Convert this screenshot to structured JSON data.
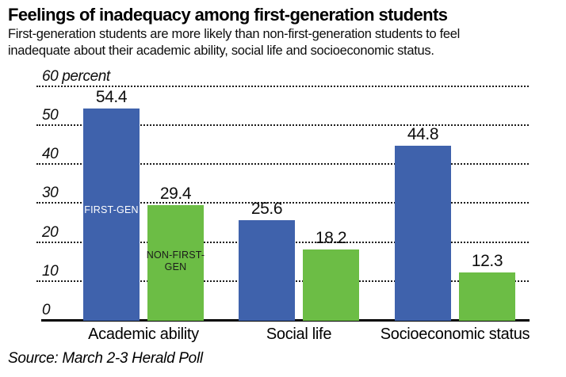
{
  "header": {
    "title": "Feelings of inadequacy among first-generation students",
    "subtitle_lines": [
      "First-generation students are more likely than non-first-generation students to feel",
      "inadequate about their academic ability, social life and socioeconomic status."
    ]
  },
  "chart_data": {
    "type": "bar",
    "title": "Feelings of inadequacy among first-generation students",
    "xlabel": "",
    "ylabel": "percent",
    "ylim": [
      0,
      60
    ],
    "grid": "dotted horizontal",
    "legend_position": "in-bar",
    "categories": [
      "Academic ability",
      "Social life",
      "Socioeconomic status"
    ],
    "series": [
      {
        "name": "FIRST-GEN",
        "color": "#3f62ac",
        "label_color": "#ffffff",
        "in_bar_label_lines": [
          "FIRST-GEN"
        ],
        "values": [
          54.4,
          25.6,
          44.8
        ]
      },
      {
        "name": "NON-FIRST-GEN",
        "color": "#6cbd45",
        "label_color": "#1a1a1a",
        "in_bar_label_lines": [
          "NON-FIRST-",
          "GEN"
        ],
        "values": [
          29.4,
          18.2,
          12.3
        ]
      }
    ],
    "y_ticks": [
      {
        "value": 60,
        "label": "60 percent"
      },
      {
        "value": 50,
        "label": "50"
      },
      {
        "value": 40,
        "label": "40"
      },
      {
        "value": 30,
        "label": "30"
      },
      {
        "value": 20,
        "label": "20"
      },
      {
        "value": 10,
        "label": "10"
      },
      {
        "value": 0,
        "label": "0"
      }
    ],
    "value_labels": [
      "54.4",
      "29.4",
      "25.6",
      "18.2",
      "44.8",
      "12.3"
    ]
  },
  "source": {
    "text": "Source: March 2-3 Herald Poll"
  }
}
